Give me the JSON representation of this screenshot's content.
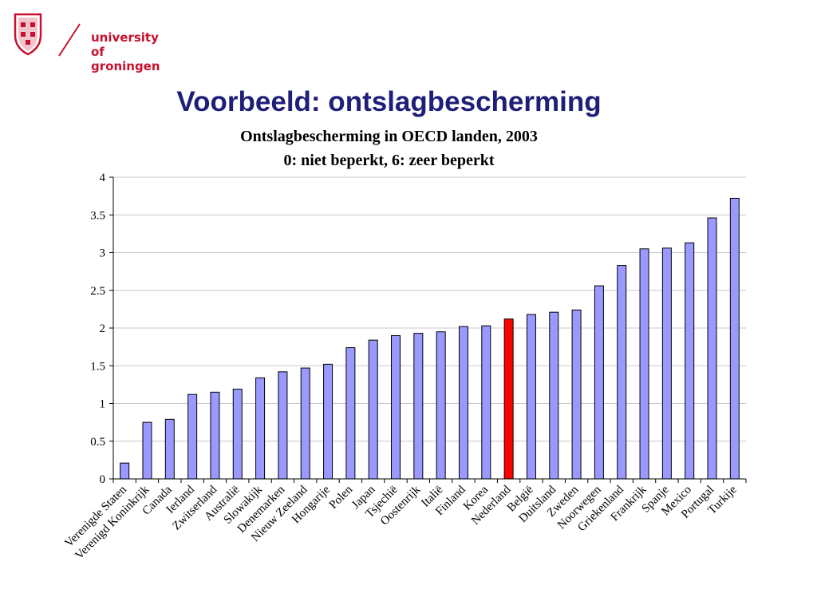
{
  "logo": {
    "line1": "university of",
    "line2": "groningen"
  },
  "title": "Voorbeeld: ontslagbescherming",
  "chart_data": {
    "type": "bar",
    "title": "Ontslagbescherming in OECD landen, 2003",
    "subtitle": "0: niet beperkt, 6: zeer beperkt",
    "xlabel": "",
    "ylabel": "",
    "ylim": [
      0,
      4
    ],
    "yticks": [
      "0",
      "0.5",
      "1",
      "1.5",
      "2",
      "2.5",
      "3",
      "3.5",
      "4"
    ],
    "grid": true,
    "legend": "none",
    "categories": [
      "Verenigde Staten",
      "Verenigd Koninkrijk",
      "Canada",
      "Ierland",
      "Zwitserland",
      "Australië",
      "Slowakijk",
      "Denemarken",
      "Nieuw Zeeland",
      "Hongarije",
      "Polen",
      "Japan",
      "Tsjechië",
      "Oostenrijk",
      "Italië",
      "Finland",
      "Korea",
      "Nederland",
      "België",
      "Duitsland",
      "Zweden",
      "Noorwegen",
      "Griekenland",
      "Frankrijk",
      "Spanje",
      "Mexico",
      "Portugal",
      "Turkije"
    ],
    "values": [
      0.21,
      0.75,
      0.79,
      1.12,
      1.15,
      1.19,
      1.34,
      1.42,
      1.47,
      1.52,
      1.74,
      1.84,
      1.9,
      1.93,
      1.95,
      2.02,
      2.03,
      2.12,
      2.18,
      2.21,
      2.24,
      2.56,
      2.83,
      3.05,
      3.06,
      3.13,
      3.46,
      3.72
    ],
    "bar_color": "#9999ff",
    "highlight_color": "#ff0000",
    "highlight_category": "Nederland"
  }
}
